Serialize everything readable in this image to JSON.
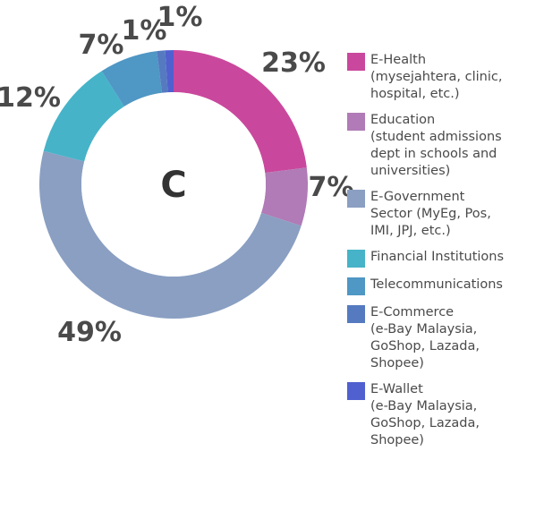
{
  "chart_data": {
    "type": "pie",
    "title": "",
    "center_label": "C",
    "categories": [
      "E-Health",
      "Education",
      "E-Government Sector",
      "Financial Institutions",
      "Telecommunications",
      "E-Commerce",
      "E-Wallet"
    ],
    "values": [
      23,
      7,
      49,
      12,
      7,
      1,
      1
    ],
    "value_labels": [
      "23%",
      "7%",
      "49%",
      "12%",
      "7%",
      "1%",
      "1%"
    ],
    "colors": [
      "#c9489d",
      "#b07bb6",
      "#8a9fc2",
      "#46b3c8",
      "#4f97c4",
      "#557ac0",
      "#5060cf"
    ],
    "legend": {
      "placement": "right",
      "entries": [
        {
          "label": "E-Health\n(mysejahtera, clinic,\nhospital, etc.)",
          "color": "#c9489d"
        },
        {
          "label": "Education\n(student admissions\ndept in schools and\nuniversities)",
          "color": "#b07bb6"
        },
        {
          "label": "E-Government\nSector (MyEg, Pos,\nIMI, JPJ, etc.)",
          "color": "#8a9fc2"
        },
        {
          "label": "Financial Institutions",
          "color": "#46b3c8"
        },
        {
          "label": "Telecommunications",
          "color": "#4f97c4"
        },
        {
          "label": "E-Commerce\n(e-Bay Malaysia,\nGoShop, Lazada,\nShopee)",
          "color": "#557ac0"
        },
        {
          "label": "E-Wallet\n(e-Bay Malaysia,\nGoShop, Lazada,\nShopee)",
          "color": "#5060cf"
        }
      ]
    }
  }
}
